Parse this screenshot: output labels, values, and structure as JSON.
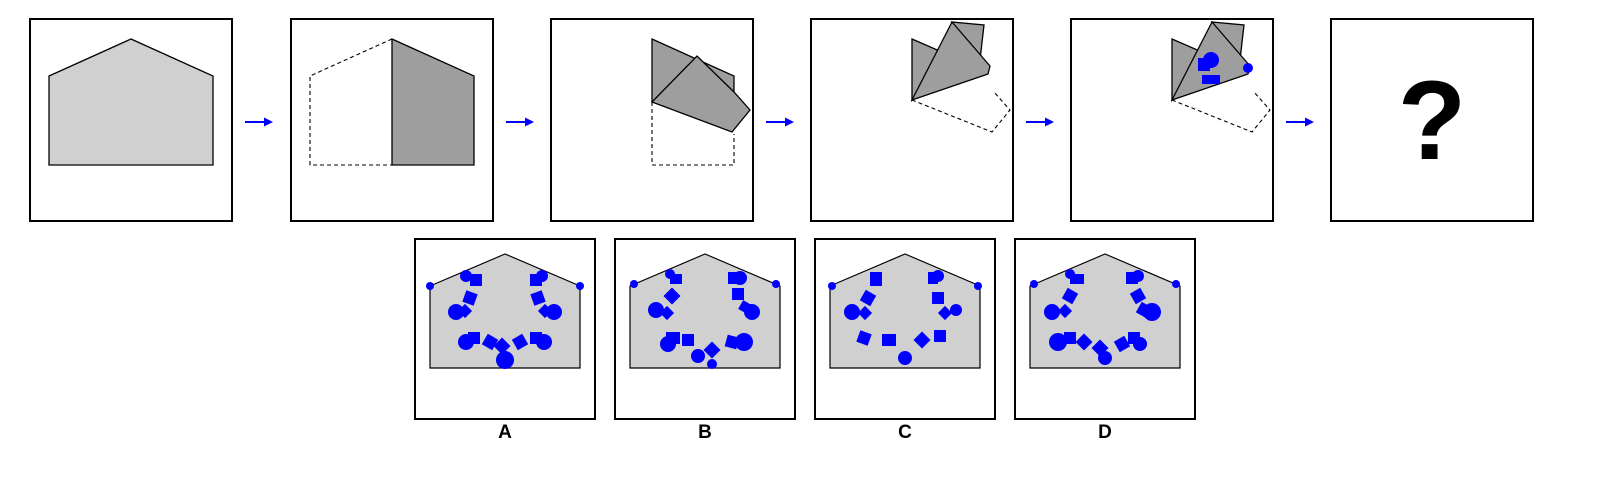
{
  "question": {
    "mark": "?"
  },
  "options": [
    {
      "label": "A"
    },
    {
      "label": "B"
    },
    {
      "label": "C"
    },
    {
      "label": "D"
    }
  ],
  "colors": {
    "paper": "#d0d0d0",
    "fold": "#9e9e9e",
    "hole": "#0000ff",
    "arrow": "#0000ff",
    "line": "#000000"
  }
}
